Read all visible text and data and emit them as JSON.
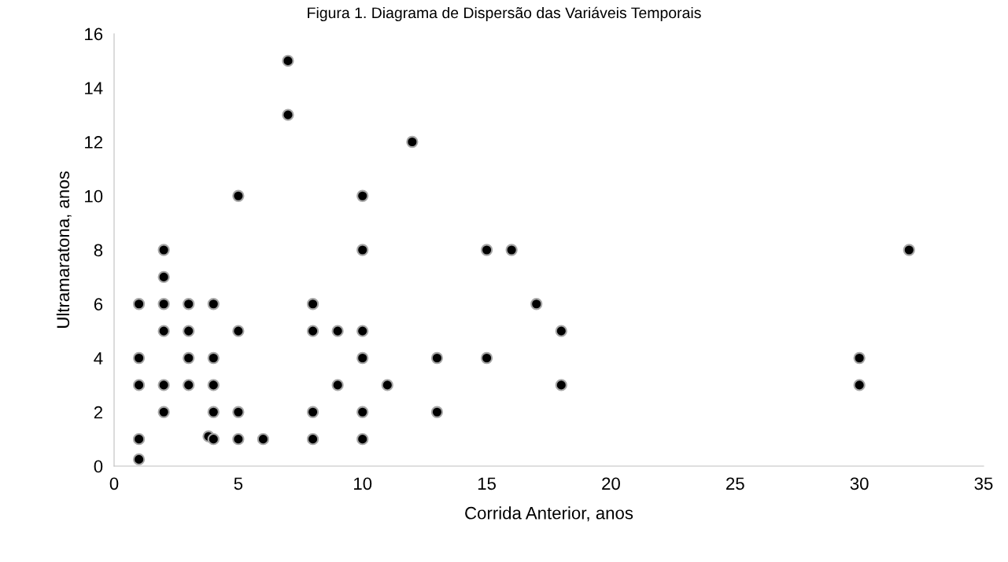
{
  "chart_data": {
    "type": "scatter",
    "title": "Figura 1. Diagrama de Dispersão das Variáveis Temporais",
    "xlabel": "Corrida Anterior, anos",
    "ylabel": "Ultramaratona, anos",
    "x": [
      1,
      1,
      1,
      1,
      1,
      2,
      2,
      2,
      2,
      2,
      2,
      3,
      3,
      3,
      3,
      3.8,
      4,
      4,
      4,
      4,
      4,
      5,
      5,
      5,
      5,
      6,
      7,
      7,
      8,
      8,
      8,
      8,
      9,
      9,
      10,
      10,
      10,
      10,
      10,
      10,
      11,
      12,
      13,
      13,
      15,
      15,
      16,
      17,
      18,
      18,
      30,
      30,
      32
    ],
    "values": [
      6,
      4,
      3,
      1,
      0.25,
      8,
      7,
      6,
      5,
      3,
      2,
      6,
      5,
      4,
      3,
      1.1,
      6,
      4,
      3,
      2,
      1,
      10,
      5,
      2,
      1,
      1,
      15,
      13,
      6,
      5,
      2,
      1,
      5,
      3,
      10,
      8,
      5,
      4,
      2,
      1,
      3,
      12,
      4,
      2,
      8,
      4,
      8,
      6,
      5,
      3,
      4,
      3,
      8
    ],
    "color": "#000000",
    "marker": "circle",
    "xlim": [
      0,
      35
    ],
    "xticks": [
      0,
      5,
      10,
      15,
      20,
      25,
      30,
      35
    ],
    "ylim": [
      0,
      16
    ],
    "yticks": [
      0,
      2,
      4,
      6,
      8,
      10,
      12,
      14,
      16
    ],
    "grid": false
  }
}
